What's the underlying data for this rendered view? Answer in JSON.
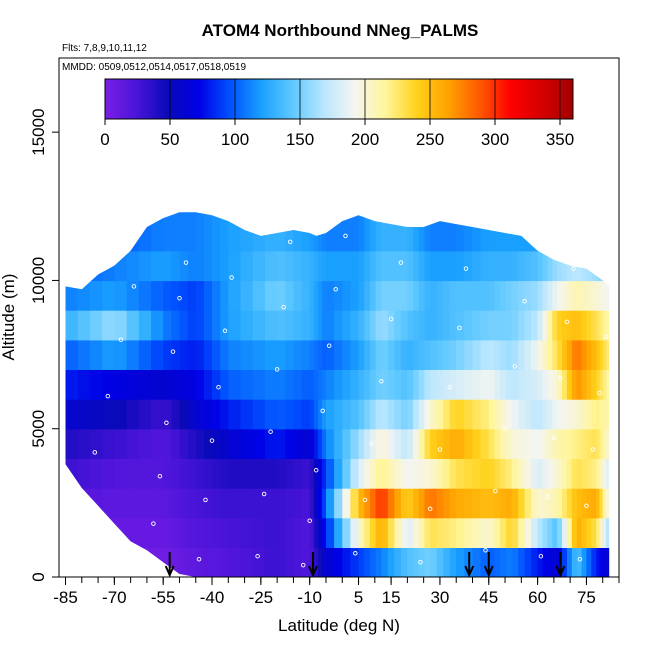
{
  "chart_data": {
    "type": "heatmap",
    "title": "ATOM4 Northbound NNeg_PALMS",
    "subtitle_flights": "Flts: 7,8,9,10,11,12",
    "subtitle_dates": "MMDD: 0509,0512,0514,0517,0518,0519",
    "xlabel": "Latitude (deg N)",
    "ylabel": "Altitude (m)",
    "xlim": [
      -87,
      85
    ],
    "ylim": [
      0,
      17500
    ],
    "x_ticks": [
      -85,
      -70,
      -55,
      -40,
      -25,
      -10,
      5,
      15,
      30,
      45,
      60,
      75
    ],
    "x_tick_labels": [
      "-85",
      "-70",
      "-55",
      "-40",
      "-25",
      "-10",
      "5",
      "15",
      "30",
      "45",
      "60",
      "75"
    ],
    "x_minor_step": 5,
    "y_ticks": [
      0,
      5000,
      10000,
      15000
    ],
    "y_tick_labels": [
      "0",
      "5000",
      "10000",
      "15000"
    ],
    "colorbar": {
      "min": 0,
      "max": 360,
      "ticks": [
        0,
        50,
        100,
        150,
        200,
        250,
        300,
        350
      ],
      "tick_labels": [
        "0",
        "50",
        "100",
        "150",
        "200",
        "250",
        "300",
        "350"
      ],
      "gradient": [
        "#7a1fe6",
        "#4b14d9",
        "#0a0ab8",
        "#0000e6",
        "#0050ff",
        "#19a0ff",
        "#5ec8ff",
        "#b8e6ff",
        "#f5f5f0",
        "#fff59a",
        "#ffd11a",
        "#ffa200",
        "#ff5a00",
        "#ff0000",
        "#d40000",
        "#a30000"
      ]
    },
    "sounding_arrows_lat": [
      -53,
      -9,
      39,
      45,
      67
    ],
    "altitude_profile": {
      "lat": [
        -85,
        -80,
        -75,
        -70,
        -65,
        -60,
        -55,
        -50,
        -45,
        -40,
        -35,
        -30,
        -25,
        -20,
        -15,
        -10,
        -8,
        -5,
        0,
        5,
        10,
        15,
        20,
        25,
        30,
        35,
        40,
        45,
        50,
        55,
        60,
        65,
        70,
        75,
        80,
        82
      ],
      "top_alt": [
        9800,
        9700,
        10200,
        10500,
        11000,
        11800,
        12100,
        12300,
        12300,
        12200,
        12000,
        11700,
        11500,
        11600,
        11700,
        11600,
        11500,
        11600,
        12000,
        12200,
        12000,
        11900,
        11800,
        11800,
        12000,
        11900,
        11800,
        11700,
        11600,
        11500,
        11000,
        10700,
        10500,
        10400,
        10000,
        9800
      ],
      "bottom_alt": [
        3800,
        3000,
        2400,
        1800,
        1200,
        900,
        500,
        100,
        0,
        0,
        0,
        0,
        0,
        0,
        0,
        0,
        0,
        0,
        0,
        0,
        0,
        0,
        0,
        0,
        0,
        0,
        0,
        0,
        0,
        0,
        0,
        0,
        0,
        0,
        0,
        0
      ]
    },
    "value_profile": {
      "lat": [
        -85,
        -70,
        -55,
        -45,
        -35,
        -20,
        -10,
        -5,
        5,
        12,
        20,
        27,
        35,
        45,
        52,
        60,
        66,
        72,
        78,
        82
      ],
      "altitude_bands_m": [
        [
          0,
          1000
        ],
        [
          1000,
          2000
        ],
        [
          2000,
          3000
        ],
        [
          3000,
          4000
        ],
        [
          4000,
          5000
        ],
        [
          5000,
          6000
        ],
        [
          6000,
          7000
        ],
        [
          7000,
          8000
        ],
        [
          8000,
          9000
        ],
        [
          9000,
          10000
        ],
        [
          10000,
          11000
        ],
        [
          11000,
          12500
        ]
      ],
      "values": [
        [
          5,
          5,
          5,
          15,
          20,
          30,
          20,
          60,
          90,
          110,
          140,
          150,
          120,
          100,
          110,
          80,
          60,
          140,
          80,
          60
        ],
        [
          10,
          10,
          10,
          20,
          25,
          30,
          20,
          80,
          200,
          260,
          180,
          230,
          220,
          200,
          240,
          170,
          140,
          260,
          230,
          160
        ],
        [
          20,
          15,
          15,
          25,
          30,
          30,
          25,
          100,
          250,
          300,
          240,
          280,
          260,
          250,
          260,
          200,
          210,
          250,
          260,
          190
        ],
        [
          30,
          20,
          20,
          30,
          40,
          40,
          30,
          90,
          180,
          220,
          190,
          200,
          230,
          240,
          220,
          180,
          200,
          230,
          220,
          180
        ],
        [
          40,
          30,
          20,
          40,
          60,
          80,
          60,
          110,
          160,
          200,
          170,
          240,
          260,
          230,
          200,
          190,
          210,
          220,
          230,
          200
        ],
        [
          60,
          50,
          30,
          60,
          80,
          100,
          90,
          120,
          140,
          170,
          150,
          200,
          240,
          220,
          190,
          170,
          190,
          200,
          220,
          210
        ],
        [
          80,
          70,
          60,
          70,
          100,
          110,
          100,
          110,
          130,
          150,
          140,
          170,
          180,
          190,
          170,
          180,
          200,
          270,
          240,
          210
        ],
        [
          100,
          120,
          90,
          80,
          110,
          120,
          110,
          100,
          120,
          150,
          130,
          140,
          150,
          170,
          160,
          190,
          230,
          280,
          250,
          220
        ],
        [
          130,
          160,
          110,
          90,
          120,
          140,
          130,
          110,
          130,
          160,
          140,
          130,
          140,
          150,
          150,
          170,
          240,
          250,
          230,
          210
        ],
        [
          110,
          120,
          100,
          90,
          120,
          150,
          130,
          110,
          120,
          150,
          150,
          130,
          140,
          140,
          150,
          160,
          190,
          210,
          200,
          190
        ],
        [
          100,
          110,
          120,
          110,
          120,
          140,
          130,
          120,
          120,
          140,
          140,
          120,
          120,
          130,
          130,
          140,
          160,
          170,
          160,
          150
        ],
        [
          90,
          100,
          110,
          110,
          120,
          130,
          120,
          110,
          110,
          130,
          130,
          110,
          110,
          120,
          120,
          120,
          140,
          150,
          140,
          130
        ]
      ]
    },
    "flight_track_points": [
      [
        -84,
        900
      ],
      [
        -80,
        2500
      ],
      [
        -76,
        4200
      ],
      [
        -72,
        6100
      ],
      [
        -68,
        8000
      ],
      [
        -64,
        9800
      ],
      [
        -60,
        300
      ],
      [
        -58,
        1800
      ],
      [
        -56,
        3400
      ],
      [
        -54,
        5200
      ],
      [
        -52,
        7600
      ],
      [
        -50,
        9400
      ],
      [
        -48,
        10600
      ],
      [
        -44,
        600
      ],
      [
        -42,
        2600
      ],
      [
        -40,
        4600
      ],
      [
        -38,
        6400
      ],
      [
        -36,
        8300
      ],
      [
        -34,
        10100
      ],
      [
        -30,
        11800
      ],
      [
        -26,
        700
      ],
      [
        -24,
        2800
      ],
      [
        -22,
        4900
      ],
      [
        -20,
        7000
      ],
      [
        -18,
        9100
      ],
      [
        -16,
        11300
      ],
      [
        -12,
        400
      ],
      [
        -10,
        1900
      ],
      [
        -8,
        3600
      ],
      [
        -6,
        5600
      ],
      [
        -4,
        7800
      ],
      [
        -2,
        9700
      ],
      [
        1,
        11500
      ],
      [
        4,
        800
      ],
      [
        7,
        2600
      ],
      [
        9,
        4500
      ],
      [
        12,
        6600
      ],
      [
        15,
        8700
      ],
      [
        18,
        10600
      ],
      [
        21,
        12100
      ],
      [
        24,
        500
      ],
      [
        27,
        2300
      ],
      [
        30,
        4300
      ],
      [
        33,
        6400
      ],
      [
        36,
        8400
      ],
      [
        38,
        10400
      ],
      [
        41,
        12400
      ],
      [
        44,
        900
      ],
      [
        47,
        2900
      ],
      [
        50,
        5000
      ],
      [
        53,
        7100
      ],
      [
        56,
        9300
      ],
      [
        59,
        11300
      ],
      [
        61,
        700
      ],
      [
        63,
        2700
      ],
      [
        65,
        4700
      ],
      [
        67,
        6700
      ],
      [
        69,
        8600
      ],
      [
        71,
        10400
      ],
      [
        73,
        600
      ],
      [
        75,
        2400
      ],
      [
        77,
        4300
      ],
      [
        79,
        6200
      ],
      [
        81,
        8100
      ]
    ],
    "grid": false,
    "legend_position": "top"
  }
}
